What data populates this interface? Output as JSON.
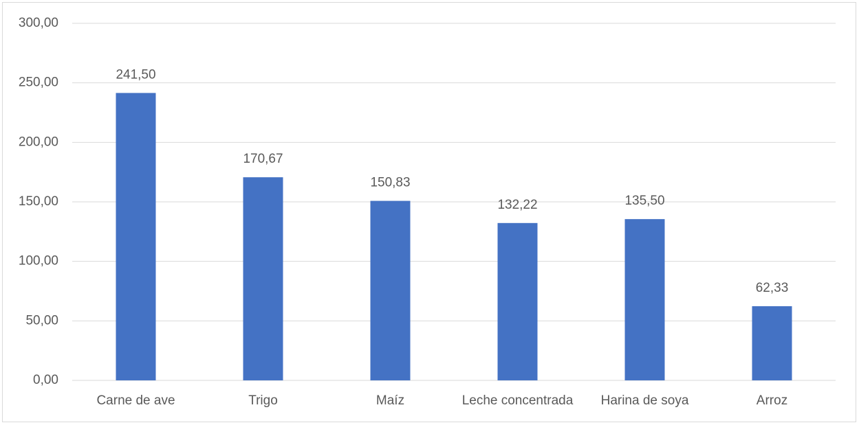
{
  "chart_data": {
    "type": "bar",
    "categories": [
      "Carne de ave",
      "Trigo",
      "Maíz",
      "Leche concentrada",
      "Harina de soya",
      "Arroz"
    ],
    "values": [
      241.5,
      170.67,
      150.83,
      132.22,
      135.5,
      62.33
    ],
    "value_labels": [
      "241,50",
      "170,67",
      "150,83",
      "132,22",
      "135,50",
      "62,33"
    ],
    "color": "#4472c4",
    "ylim": [
      0,
      300
    ],
    "yticks": [
      {
        "value": 0,
        "label": "0,00"
      },
      {
        "value": 50,
        "label": "50,00"
      },
      {
        "value": 100,
        "label": "100,00"
      },
      {
        "value": 150,
        "label": "150,00"
      },
      {
        "value": 200,
        "label": "200,00"
      },
      {
        "value": 250,
        "label": "250,00"
      },
      {
        "value": 300,
        "label": "300,00"
      }
    ],
    "grid": true
  }
}
